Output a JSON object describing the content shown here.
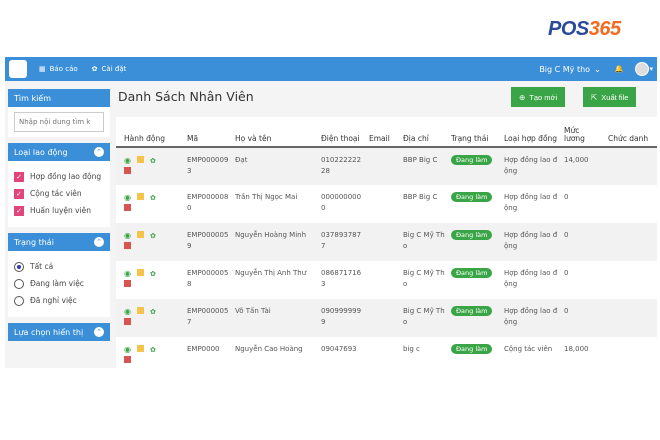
{
  "brand": {
    "logo_text_a": "POS",
    "logo_text_b": "365"
  },
  "topbar": {
    "nav": [
      {
        "label": "Báo cáo",
        "icon": "table-icon"
      },
      {
        "label": "Cài đặt",
        "icon": "gear-icon"
      }
    ],
    "store": "Big C Mỹ tho",
    "colors": {
      "primary": "#3b8fd8",
      "green": "#3aa546",
      "pink": "#e0457b"
    }
  },
  "sidebar": {
    "search": {
      "title": "Tìm kiếm",
      "placeholder": "Nhập nội dung tìm k"
    },
    "labor": {
      "title": "Loại lao động",
      "items": [
        "Hợp đồng lao động",
        "Cộng tác viên",
        "Huấn luyện viên"
      ]
    },
    "status": {
      "title": "Trạng thái",
      "items": [
        "Tất cả",
        "Đang làm việc",
        "Đã nghỉ việc"
      ],
      "selected": 0
    },
    "display": {
      "title": "Lựa chọn hiển thị"
    }
  },
  "main": {
    "title": "Danh Sách Nhân Viên",
    "create": "Tạo mới",
    "export": "Xuất file",
    "columns": [
      "Hành động",
      "Mã",
      "Họ và tên",
      "Điện thoại",
      "Email",
      "Địa chỉ",
      "Trạng thái",
      "Loại hợp đồng",
      "Mức lương",
      "Chức danh"
    ],
    "rows": [
      [
        "EMP0000093",
        "Đạt",
        "01022222228",
        "",
        "BBP Big C",
        "Đang làm",
        "Hợp đồng lao động",
        "14,000",
        ""
      ],
      [
        "EMP0000080",
        "Trần Thị Ngọc Mai",
        "0000000000",
        "",
        "BBP Big C",
        "Đang làm",
        "Hợp đồng lao động",
        "0",
        ""
      ],
      [
        "EMP0000059",
        "Nguyễn Hoàng Minh",
        "0378937877",
        "",
        "Big C Mỹ Tho",
        "Đang làm",
        "Hợp đồng lao động",
        "0",
        ""
      ],
      [
        "EMP0000058",
        "Nguyễn Thị Anh Thư",
        "0868717163",
        "",
        "Big C Mỹ Tho",
        "Đang làm",
        "Hợp đồng lao động",
        "0",
        ""
      ],
      [
        "EMP0000057",
        "Võ Tấn Tài",
        "0909999999",
        "",
        "Big C Mỹ Tho",
        "Đang làm",
        "Hợp đồng lao động",
        "0",
        ""
      ],
      [
        "EMP0000",
        "Nguyễn Cao Hoàng",
        "09047693",
        "",
        "big c",
        "Đang làm",
        "Cộng tác viên",
        "18,000",
        ""
      ]
    ]
  }
}
